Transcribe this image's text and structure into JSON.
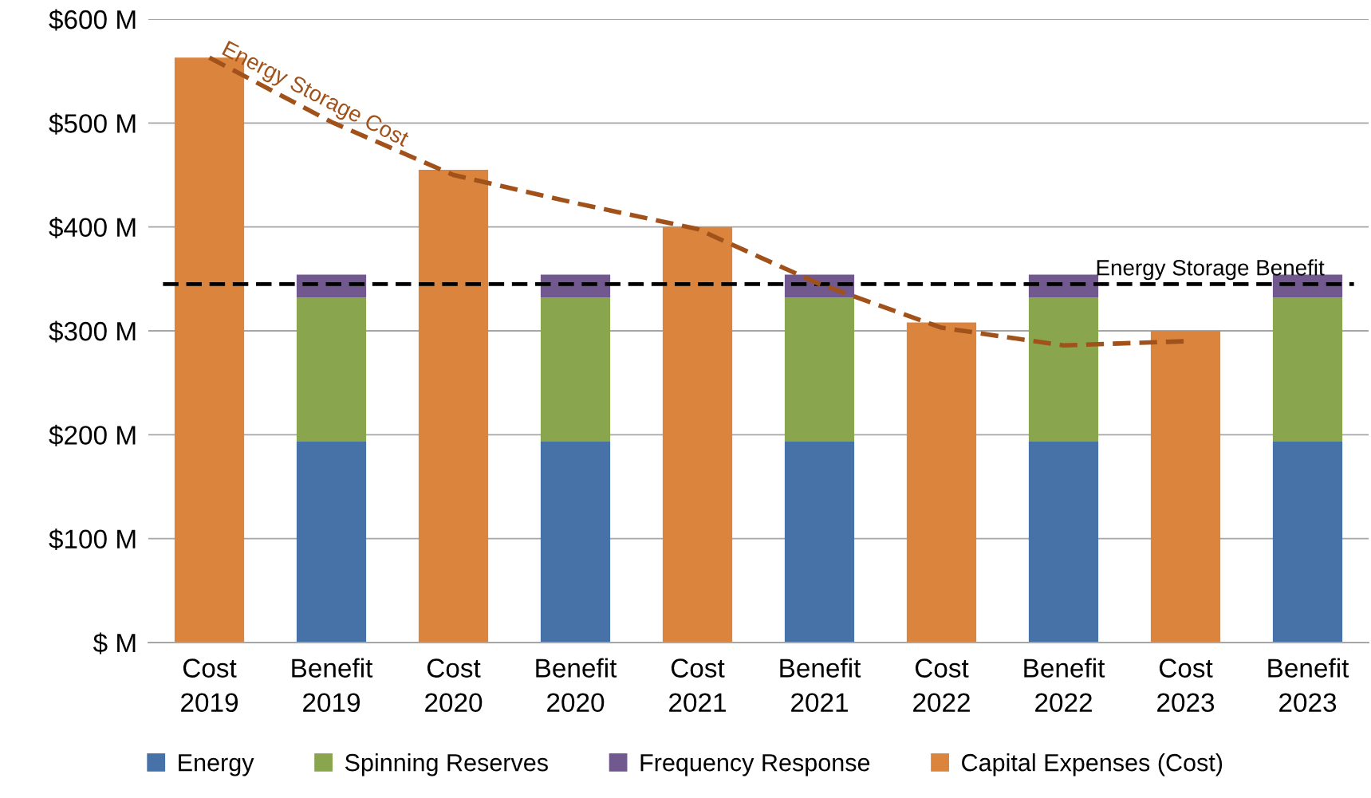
{
  "chart_data": {
    "type": "bar",
    "stacked": true,
    "categories": [
      "Cost\n2019",
      "Benefit\n2019",
      "Cost\n2020",
      "Benefit\n2020",
      "Cost\n2021",
      "Benefit\n2021",
      "Cost\n2022",
      "Benefit\n2022",
      "Cost\n2023",
      "Benefit\n2023"
    ],
    "series": [
      {
        "name": "Energy",
        "color": "#4672a8",
        "values": [
          null,
          194,
          null,
          194,
          null,
          194,
          null,
          194,
          null,
          194
        ]
      },
      {
        "name": "Spinning Reserves",
        "color": "#89a54e",
        "values": [
          null,
          138,
          null,
          138,
          null,
          138,
          null,
          138,
          null,
          138
        ]
      },
      {
        "name": "Frequency Response",
        "color": "#71588f",
        "values": [
          null,
          22,
          null,
          22,
          null,
          22,
          null,
          22,
          null,
          22
        ]
      },
      {
        "name": "Capital Expenses (Cost)",
        "color": "#db843d",
        "values": [
          563,
          null,
          455,
          null,
          400,
          null,
          308,
          null,
          300,
          null
        ]
      },
      {
        "name": "Energy Storage Cost",
        "type": "line",
        "line_style": "dashed",
        "color": "#a0521a",
        "values": [
          563,
          501,
          450,
          423,
          398,
          345,
          303,
          286,
          290,
          null
        ]
      }
    ],
    "ylim": [
      0,
      600
    ],
    "yticks": [
      {
        "value": 0,
        "label": "$ M"
      },
      {
        "value": 100,
        "label": "$100 M"
      },
      {
        "value": 200,
        "label": "$200 M"
      },
      {
        "value": 300,
        "label": "$300 M"
      },
      {
        "value": 400,
        "label": "$400 M"
      },
      {
        "value": 500,
        "label": "$500 M"
      },
      {
        "value": 600,
        "label": "$600 M"
      }
    ],
    "ref_lines": [
      {
        "axis": "y",
        "value": 345,
        "label": "Energy Storage Benefit",
        "color": "#000000",
        "line_style": "dashed"
      }
    ],
    "grid": "y",
    "legend": "bottom"
  }
}
